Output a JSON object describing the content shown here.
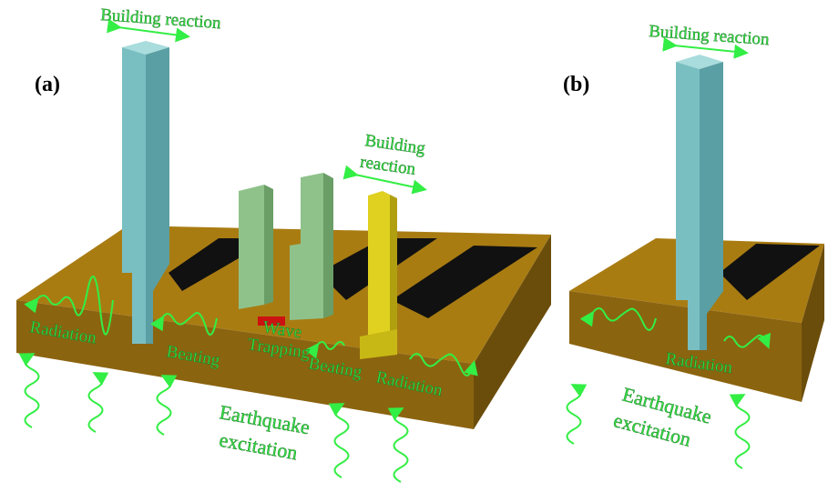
{
  "panels": [
    {
      "label": "(a)",
      "annotations": [
        {
          "lines": [
            "Building reaction"
          ]
        },
        {
          "lines": [
            "Building",
            "reaction"
          ]
        },
        {
          "lines": [
            "Radiation"
          ]
        },
        {
          "lines": [
            "Beating"
          ]
        },
        {
          "lines": [
            "Wave",
            "Trapping"
          ]
        },
        {
          "lines": [
            "Beating"
          ]
        },
        {
          "lines": [
            "Radiation"
          ]
        },
        {
          "lines": [
            "Earthquake",
            "excitation"
          ]
        }
      ]
    },
    {
      "label": "(b)",
      "annotations": [
        {
          "lines": [
            "Building reaction"
          ]
        },
        {
          "lines": [
            "Radiation"
          ]
        },
        {
          "lines": [
            "Earthquake",
            "excitation"
          ]
        }
      ]
    }
  ]
}
